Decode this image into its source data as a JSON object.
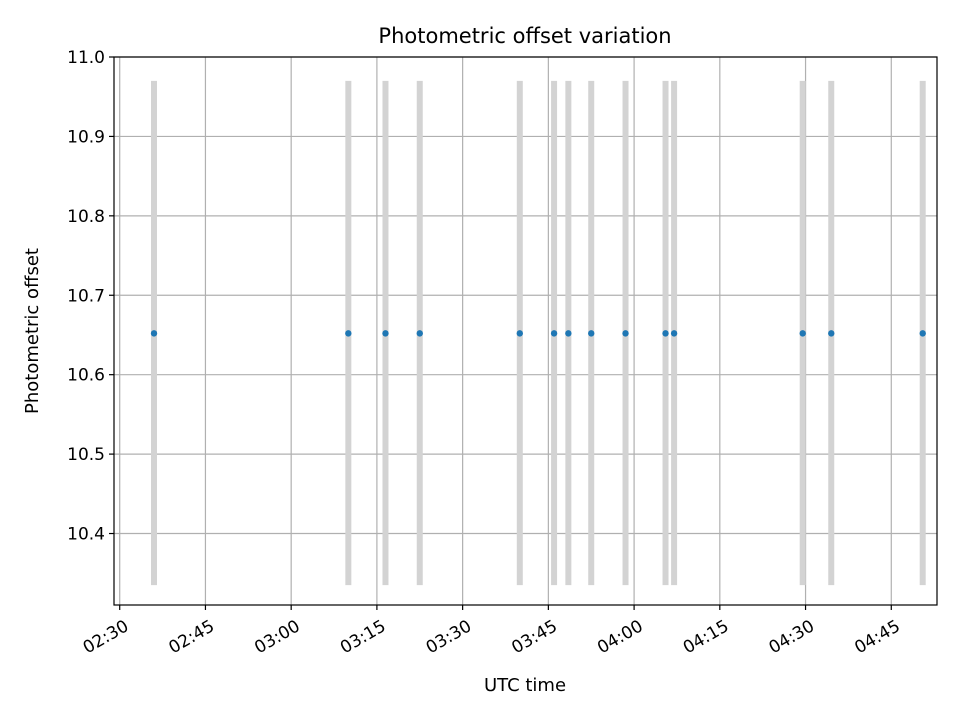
{
  "chart_data": {
    "type": "scatter",
    "title": "Photometric offset variation",
    "xlabel": "UTC time",
    "ylabel": "Photometric offset",
    "xlim": [
      "02:29",
      "04:53"
    ],
    "ylim": [
      10.31,
      11.0
    ],
    "x_ticks": [
      "02:30",
      "02:45",
      "03:00",
      "03:15",
      "03:30",
      "03:45",
      "04:00",
      "04:15",
      "04:30",
      "04:45"
    ],
    "y_ticks": [
      10.4,
      10.5,
      10.6,
      10.7,
      10.8,
      10.9,
      11.0
    ],
    "y_tick_labels": [
      "10.4",
      "10.5",
      "10.6",
      "10.7",
      "10.8",
      "10.9",
      "11.0"
    ],
    "grid": true,
    "error_bar_color": "#d3d3d3",
    "point_color": "#1f77b4",
    "series": [
      {
        "x": [
          "02:36",
          "03:10",
          "03:16.5",
          "03:22.5",
          "03:40",
          "03:46",
          "03:48.5",
          "03:52.5",
          "03:58.5",
          "04:05.5",
          "04:07",
          "04:29.5",
          "04:34.5",
          "04:50.5"
        ],
        "y": [
          10.652,
          10.652,
          10.652,
          10.652,
          10.652,
          10.652,
          10.652,
          10.652,
          10.652,
          10.652,
          10.652,
          10.652,
          10.652,
          10.652
        ],
        "yerr_low": [
          10.335,
          10.335,
          10.335,
          10.335,
          10.335,
          10.335,
          10.335,
          10.335,
          10.335,
          10.335,
          10.335,
          10.335,
          10.335,
          10.335
        ],
        "yerr_high": [
          10.97,
          10.97,
          10.97,
          10.97,
          10.97,
          10.97,
          10.97,
          10.97,
          10.97,
          10.97,
          10.97,
          10.97,
          10.97,
          10.97
        ]
      }
    ]
  }
}
